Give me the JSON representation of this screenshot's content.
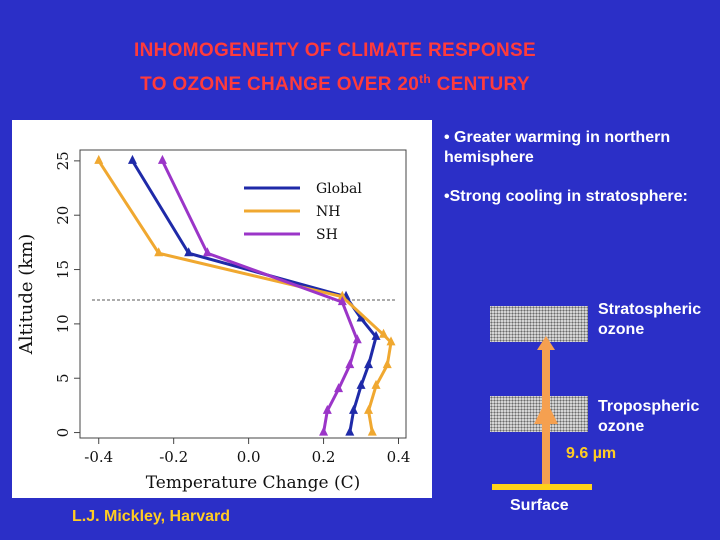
{
  "title": {
    "line1": "INHOMOGENEITY OF CLIMATE RESPONSE",
    "line2_pre": "TO OZONE CHANGE OVER 20",
    "line2_sup": "th",
    "line2_post": " CENTURY"
  },
  "bullets": [
    "• Greater warming in northern hemisphere",
    "•Strong cooling in stratosphere:"
  ],
  "credit": "L.J. Mickley, Harvard",
  "diagram": {
    "stratospheric_label": "Stratospheric ozone",
    "tropospheric_label": "Tropospheric ozone",
    "wavelength_label": "9.6 µm",
    "surface_label": "Surface"
  },
  "colors": {
    "background": "#2b2fc7",
    "title": "#ff3b3b",
    "accent": "#ffcc22",
    "arrow": "#f5a050",
    "global": "#1f2aa8",
    "nh": "#f0a830",
    "sh": "#9b35c8"
  },
  "chart_data": {
    "type": "line",
    "xlabel": "Temperature Change (C)",
    "ylabel": "Altitude (km)",
    "xlim": [
      -0.45,
      0.42
    ],
    "ylim": [
      -0.5,
      26
    ],
    "xticks": [
      -0.4,
      -0.2,
      0.0,
      0.2,
      0.4
    ],
    "yticks": [
      0,
      5,
      10,
      15,
      20,
      25
    ],
    "tropopause_km": 12.2,
    "legend": "top-right",
    "series": [
      {
        "name": "Global",
        "color_key": "global",
        "points": [
          [
            -0.16,
            16.5
          ],
          [
            0.26,
            12.5
          ],
          [
            0.3,
            10.5
          ],
          [
            0.34,
            8.8
          ],
          [
            0.32,
            6.2
          ],
          [
            0.3,
            4.3
          ],
          [
            0.28,
            2.0
          ],
          [
            0.27,
            0.0
          ],
          [
            -0.31,
            25.0
          ]
        ],
        "order": [
          8,
          0,
          1,
          2,
          3,
          4,
          5,
          6,
          7
        ]
      },
      {
        "name": "NH",
        "color_key": "nh",
        "points": [
          [
            -0.4,
            25.0
          ],
          [
            -0.24,
            16.5
          ],
          [
            0.25,
            12.5
          ],
          [
            0.36,
            9.0
          ],
          [
            0.38,
            8.3
          ],
          [
            0.37,
            6.2
          ],
          [
            0.34,
            4.3
          ],
          [
            0.32,
            2.0
          ],
          [
            0.33,
            0.0
          ]
        ],
        "order": [
          0,
          1,
          2,
          3,
          4,
          5,
          6,
          7,
          8
        ]
      },
      {
        "name": "SH",
        "color_key": "sh",
        "points": [
          [
            -0.23,
            25.0
          ],
          [
            -0.11,
            16.5
          ],
          [
            0.25,
            12.0
          ],
          [
            0.29,
            8.5
          ],
          [
            0.27,
            6.2
          ],
          [
            0.24,
            4.0
          ],
          [
            0.21,
            2.0
          ],
          [
            0.2,
            0.0
          ]
        ],
        "order": [
          0,
          1,
          2,
          3,
          4,
          5,
          6,
          7
        ]
      }
    ]
  }
}
